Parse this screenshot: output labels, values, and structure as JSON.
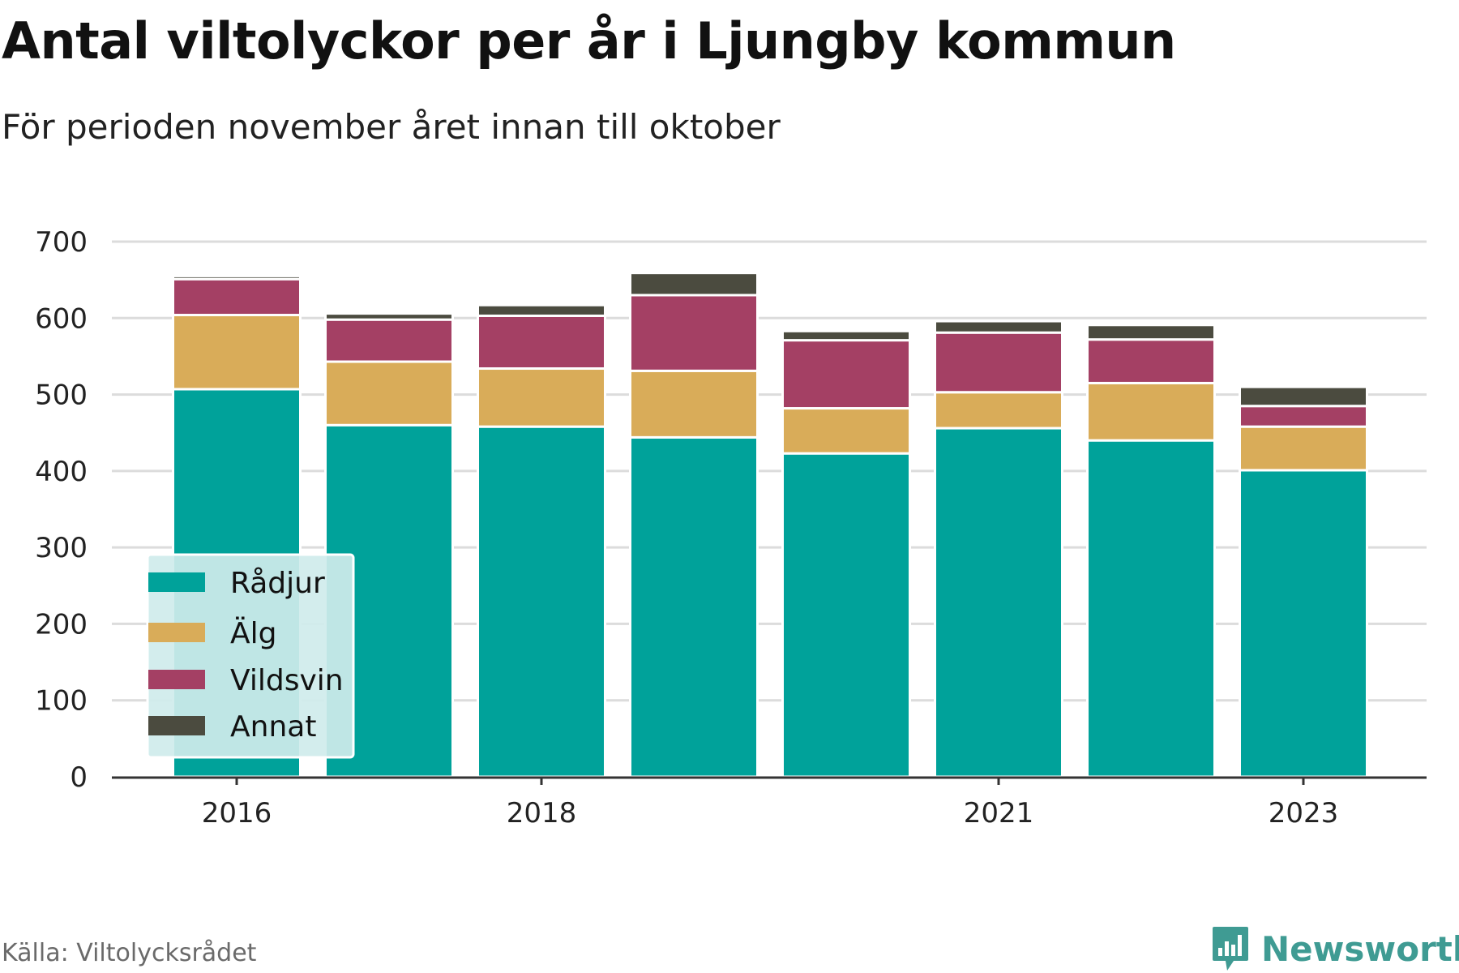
{
  "title": "Antal viltolyckor per år i Ljungby kommun",
  "subtitle": "För perioden november året innan till oktober",
  "source": "Källa: Viltolycksrådet",
  "brand": "Newsworthy",
  "colors": {
    "Rådjur": "#00a29a",
    "Älg": "#d9ac59",
    "Vildsvin": "#a44064",
    "Annat": "#4b4b3f",
    "grid": "#dcdcdc",
    "axis": "#333333",
    "legend_bg": "#cfeceb",
    "brand": "#3f9b93"
  },
  "chart_data": {
    "type": "bar",
    "stacked": true,
    "x": [
      2016,
      2017,
      2018,
      2019,
      2020,
      2021,
      2022,
      2023
    ],
    "x_tick_labels": [
      "2016",
      "2018",
      "2021",
      "2023"
    ],
    "x_tick_values": [
      2016,
      2018,
      2021,
      2023
    ],
    "series": [
      {
        "name": "Rådjur",
        "values": [
          507,
          460,
          458,
          444,
          423,
          456,
          440,
          401
        ]
      },
      {
        "name": "Älg",
        "values": [
          97,
          83,
          76,
          87,
          59,
          47,
          75,
          57
        ]
      },
      {
        "name": "Vildsvin",
        "values": [
          47,
          55,
          69,
          99,
          89,
          78,
          57,
          27
        ]
      },
      {
        "name": "Annat",
        "values": [
          4,
          8,
          14,
          29,
          12,
          15,
          19,
          25
        ]
      }
    ],
    "ylim": [
      0,
      700
    ],
    "y_ticks": [
      0,
      100,
      200,
      300,
      400,
      500,
      600,
      700
    ],
    "grid": true,
    "legend": {
      "placement": "bottom-left",
      "entries": [
        "Rådjur",
        "Älg",
        "Vildsvin",
        "Annat"
      ]
    }
  }
}
